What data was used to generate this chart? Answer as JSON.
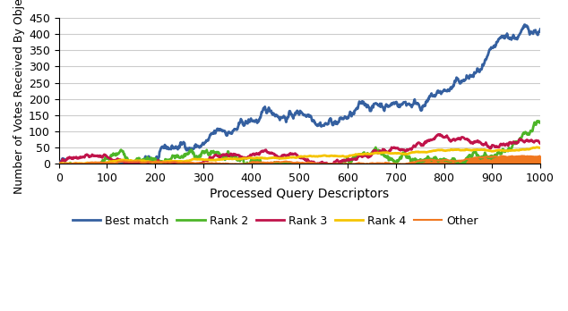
{
  "title": "",
  "xlabel": "Processed Query Descriptors",
  "ylabel": "Number of Votes Received By Object",
  "xlim": [
    0,
    1000
  ],
  "ylim": [
    0,
    450
  ],
  "yticks": [
    0,
    50,
    100,
    150,
    200,
    250,
    300,
    350,
    400,
    450
  ],
  "xticks": [
    0,
    100,
    200,
    300,
    400,
    500,
    600,
    700,
    800,
    900,
    1000
  ],
  "series": [
    {
      "label": "Best match",
      "color": "#3560a0",
      "linewidth": 2.0,
      "end_value": 415,
      "noise_scale": 5.0,
      "power": 1.25,
      "fill": false
    },
    {
      "label": "Rank 2",
      "color": "#4db528",
      "linewidth": 2.0,
      "end_value": 130,
      "noise_scale": 2.0,
      "power": 1.05,
      "fill": false
    },
    {
      "label": "Rank 3",
      "color": "#c0144b",
      "linewidth": 2.0,
      "end_value": 63,
      "noise_scale": 1.2,
      "power": 1.0,
      "fill": false
    },
    {
      "label": "Rank 4",
      "color": "#f5c400",
      "linewidth": 2.0,
      "end_value": 50,
      "noise_scale": 1.0,
      "power": 1.0,
      "fill": false
    },
    {
      "label": "Other",
      "color": "#f07820",
      "linewidth": 1.5,
      "end_value": 25,
      "noise_scale": 0.8,
      "power": 0.95,
      "fill": true
    }
  ],
  "background_color": "#ffffff",
  "grid_color": "#cccccc"
}
